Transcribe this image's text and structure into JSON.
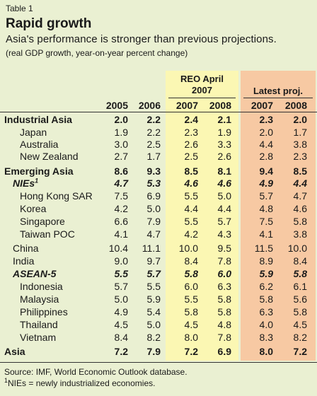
{
  "header": {
    "table_label": "Table 1",
    "title": "Rapid growth",
    "subtitle": "Asia's performance is stronger than previous projections.",
    "units": "(real GDP growth, year-on-year percent change)"
  },
  "columns": {
    "reo_title_line1": "REO April",
    "reo_title_line2": "2007",
    "latest_title": "Latest proj.",
    "years": [
      "2005",
      "2006",
      "2007",
      "2008",
      "2007",
      "2008"
    ]
  },
  "colors": {
    "background": "#eaf0d2",
    "reo_band": "#fbf7b3",
    "latest_band": "#f7c9a3"
  },
  "rows": [
    {
      "label": "Industrial Asia",
      "values": [
        "2.0",
        "2.2",
        "2.4",
        "2.1",
        "2.3",
        "2.0"
      ]
    },
    {
      "label": "Japan",
      "values": [
        "1.9",
        "2.2",
        "2.3",
        "1.9",
        "2.0",
        "1.7"
      ]
    },
    {
      "label": "Australia",
      "values": [
        "3.0",
        "2.5",
        "2.6",
        "3.3",
        "4.4",
        "3.8"
      ]
    },
    {
      "label": "New Zealand",
      "values": [
        "2.7",
        "1.7",
        "2.5",
        "2.6",
        "2.8",
        "2.3"
      ]
    },
    {
      "label": "Emerging Asia",
      "values": [
        "8.6",
        "9.3",
        "8.5",
        "8.1",
        "9.4",
        "8.5"
      ]
    },
    {
      "label": "NIEs",
      "sup": "1",
      "values": [
        "4.7",
        "5.3",
        "4.6",
        "4.6",
        "4.9",
        "4.4"
      ]
    },
    {
      "label": "Hong Kong SAR",
      "values": [
        "7.5",
        "6.9",
        "5.5",
        "5.0",
        "5.7",
        "4.7"
      ]
    },
    {
      "label": "Korea",
      "values": [
        "4.2",
        "5.0",
        "4.4",
        "4.4",
        "4.8",
        "4.6"
      ]
    },
    {
      "label": "Singapore",
      "values": [
        "6.6",
        "7.9",
        "5.5",
        "5.7",
        "7.5",
        "5.8"
      ]
    },
    {
      "label": "Taiwan POC",
      "values": [
        "4.1",
        "4.7",
        "4.2",
        "4.3",
        "4.1",
        "3.8"
      ]
    },
    {
      "label": "China",
      "values": [
        "10.4",
        "11.1",
        "10.0",
        "9.5",
        "11.5",
        "10.0"
      ]
    },
    {
      "label": "India",
      "values": [
        "9.0",
        "9.7",
        "8.4",
        "7.8",
        "8.9",
        "8.4"
      ]
    },
    {
      "label": "ASEAN-5",
      "values": [
        "5.5",
        "5.7",
        "5.8",
        "6.0",
        "5.9",
        "5.8"
      ]
    },
    {
      "label": "Indonesia",
      "values": [
        "5.7",
        "5.5",
        "6.0",
        "6.3",
        "6.2",
        "6.1"
      ]
    },
    {
      "label": "Malaysia",
      "values": [
        "5.0",
        "5.9",
        "5.5",
        "5.8",
        "5.8",
        "5.6"
      ]
    },
    {
      "label": "Philippines",
      "values": [
        "4.9",
        "5.4",
        "5.8",
        "5.8",
        "6.3",
        "5.8"
      ]
    },
    {
      "label": "Thailand",
      "values": [
        "4.5",
        "5.0",
        "4.5",
        "4.8",
        "4.0",
        "4.5"
      ]
    },
    {
      "label": "Vietnam",
      "values": [
        "8.4",
        "8.2",
        "8.0",
        "7.8",
        "8.3",
        "8.2"
      ]
    },
    {
      "label": "Asia",
      "values": [
        "7.2",
        "7.9",
        "7.2",
        "6.9",
        "8.0",
        "7.2"
      ]
    }
  ],
  "footer": {
    "source": "Source: IMF, World Economic Outlook database.",
    "note_sup": "1",
    "note": "NIEs = newly industrialized economies."
  }
}
